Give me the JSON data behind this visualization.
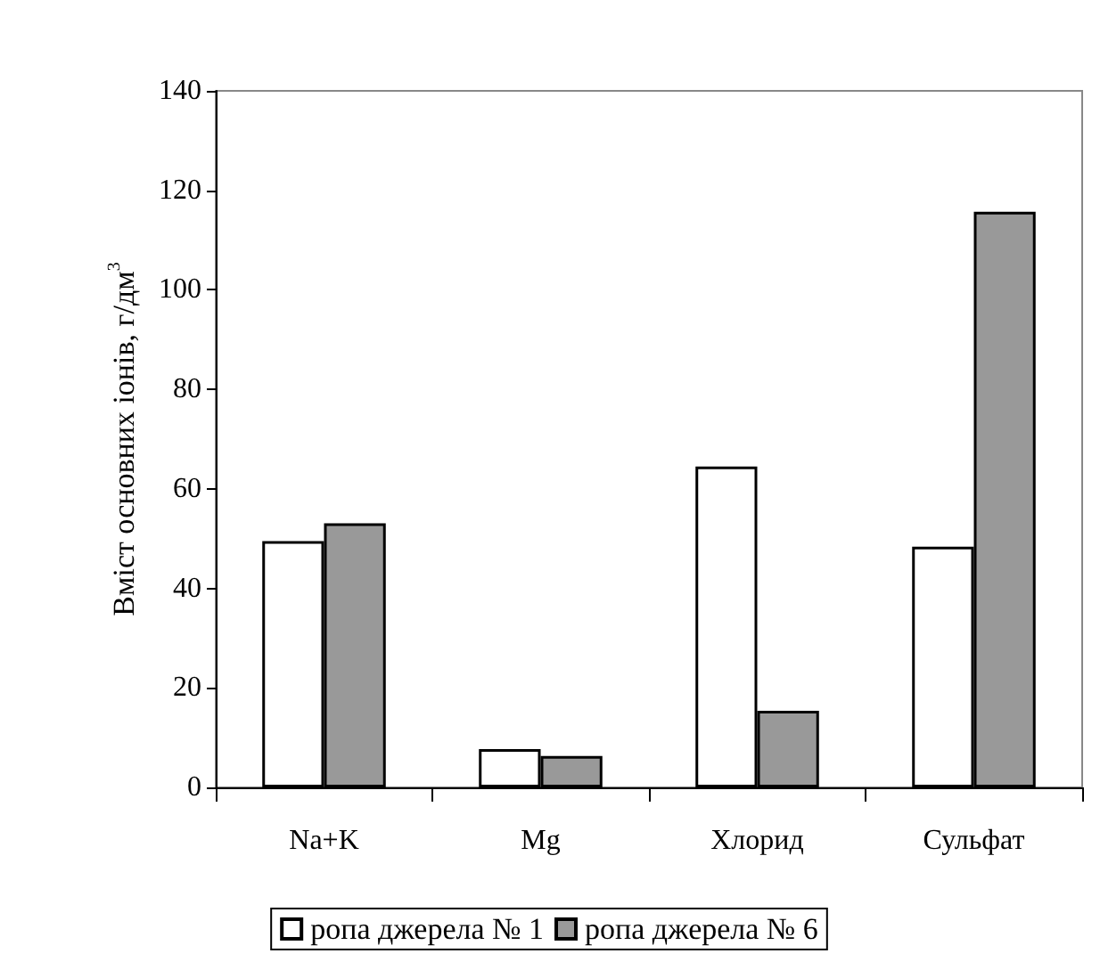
{
  "chart_data": {
    "type": "bar",
    "ylabel": "Вміст основних іонів, г/дм$^{3}$",
    "categories": [
      "Na+K",
      "Mg",
      "Хлорид",
      "Сульфат"
    ],
    "series": [
      {
        "name": "ропа джерела № 1",
        "color": "#ffffff",
        "values": [
          49.5,
          7.7,
          64.5,
          48.4
        ]
      },
      {
        "name": "ропа джерела № 6",
        "color": "#999999",
        "values": [
          53.1,
          6.3,
          15.4,
          115.7
        ]
      }
    ],
    "ylim": [
      0,
      140
    ],
    "yticks": [
      0,
      20,
      40,
      60,
      80,
      100,
      120,
      140
    ],
    "grid": false,
    "legend": "bottom"
  }
}
